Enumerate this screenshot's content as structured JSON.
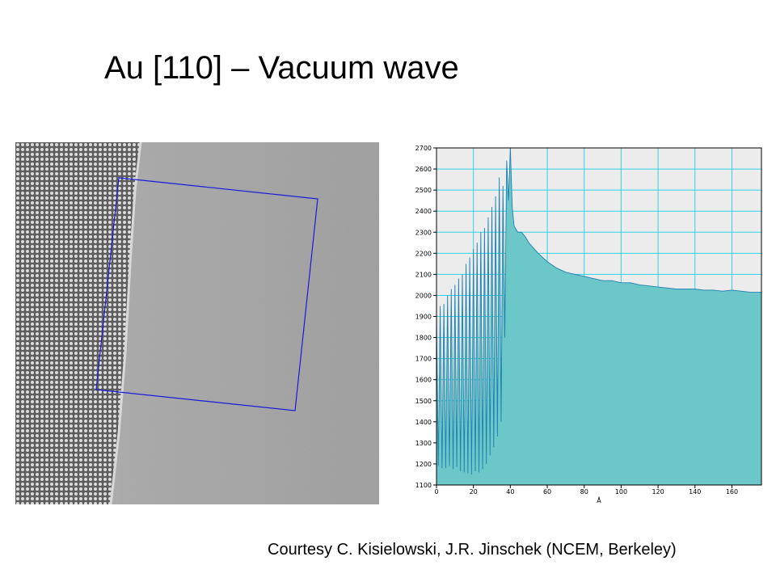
{
  "slide": {
    "title": "Au [110] – Vacuum wave",
    "credit": "Courtesy C. Kisielowski, J.R. Jinschek (NCEM, Berkeley)"
  },
  "colors": {
    "fill": "#6cc8c8",
    "line": "#1e7fb0",
    "grid": "#2fd3e8",
    "plot_bg": "#ececec",
    "roi": "#1a1adc"
  },
  "chart_data": {
    "type": "area",
    "title": "",
    "xlabel": "Å",
    "ylabel": "",
    "xlim": [
      0,
      176
    ],
    "ylim": [
      1100,
      2700
    ],
    "x_ticks": [
      0,
      20,
      40,
      60,
      80,
      100,
      120,
      140,
      160
    ],
    "y_ticks": [
      1100,
      1200,
      1300,
      1400,
      1500,
      1600,
      1700,
      1800,
      1900,
      2000,
      2100,
      2200,
      2300,
      2400,
      2500,
      2600,
      2700
    ],
    "grid": true,
    "series": [
      {
        "name": "",
        "x": [
          0,
          1,
          2,
          3,
          4,
          5,
          6,
          7,
          8,
          9,
          10,
          11,
          12,
          13,
          14,
          15,
          16,
          17,
          18,
          19,
          20,
          21,
          22,
          23,
          24,
          25,
          26,
          27,
          28,
          29,
          30,
          31,
          32,
          33,
          34,
          35,
          36,
          37,
          38,
          39,
          40,
          41,
          42,
          44,
          46,
          48,
          50,
          55,
          60,
          65,
          70,
          75,
          80,
          85,
          90,
          95,
          100,
          105,
          110,
          115,
          120,
          125,
          130,
          135,
          140,
          145,
          150,
          155,
          160,
          165,
          170,
          176
        ],
        "values": [
          1900,
          1190,
          1950,
          1180,
          1960,
          1180,
          2000,
          1190,
          2030,
          1175,
          2050,
          1185,
          2080,
          1165,
          2100,
          1160,
          2150,
          1155,
          2180,
          1150,
          2220,
          1165,
          2250,
          1160,
          2300,
          1175,
          2320,
          1200,
          2370,
          1240,
          2420,
          1280,
          2470,
          1330,
          2560,
          1400,
          2520,
          1800,
          2640,
          2450,
          2700,
          2420,
          2330,
          2300,
          2300,
          2280,
          2250,
          2200,
          2160,
          2130,
          2110,
          2100,
          2090,
          2080,
          2070,
          2070,
          2060,
          2060,
          2050,
          2045,
          2040,
          2035,
          2030,
          2030,
          2030,
          2025,
          2025,
          2020,
          2025,
          2020,
          2015,
          2015
        ]
      }
    ]
  }
}
